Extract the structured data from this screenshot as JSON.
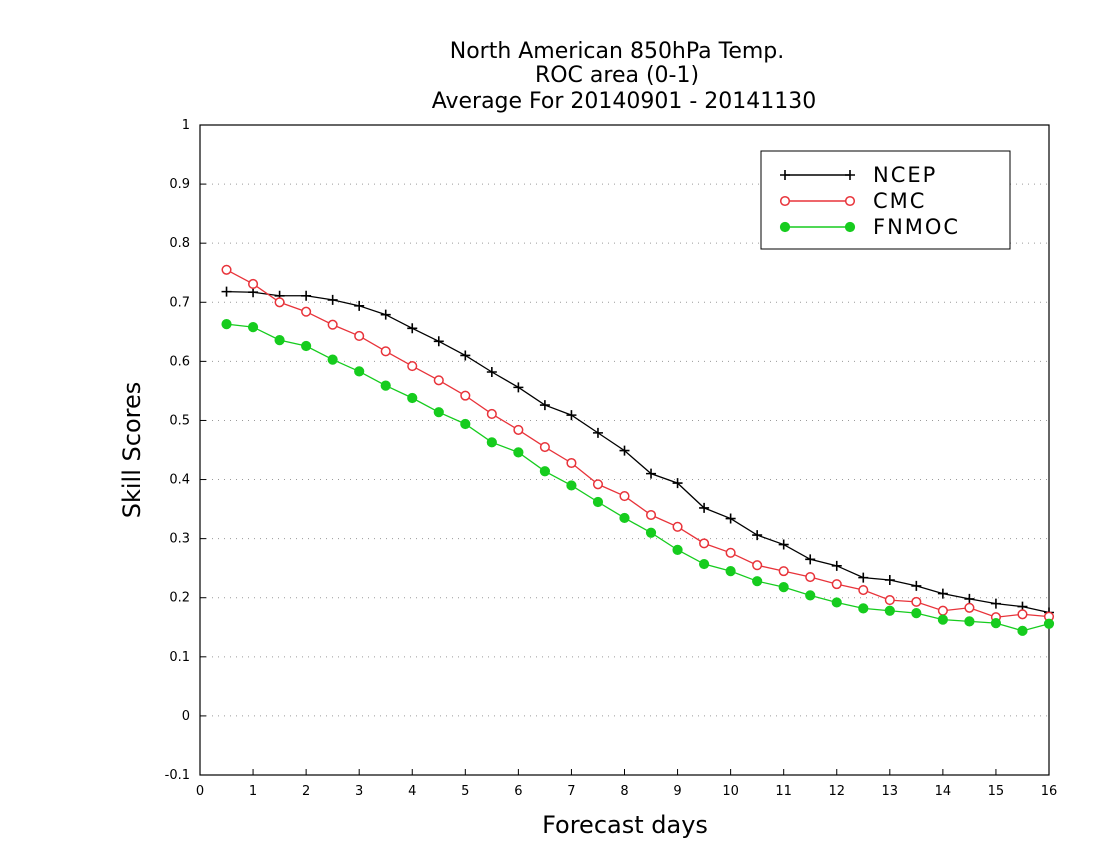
{
  "chart_data": {
    "type": "line",
    "title_lines": [
      "North American 850hPa Temp.",
      "ROC area (0-1)",
      "Average For 20140901 - 20141130"
    ],
    "xlabel": "Forecast days",
    "ylabel": "Skill Scores",
    "xlim": [
      0,
      16
    ],
    "ylim": [
      -0.1,
      1
    ],
    "x_ticks": [
      "0",
      "1",
      "2",
      "3",
      "4",
      "5",
      "6",
      "7",
      "8",
      "9",
      "10",
      "11",
      "12",
      "13",
      "14",
      "15",
      "16"
    ],
    "y_ticks": [
      "-0.1",
      "0",
      "0.1",
      "0.2",
      "0.3",
      "0.4",
      "0.5",
      "0.6",
      "0.7",
      "0.8",
      "0.9",
      "1"
    ],
    "grid": "horizontal-dotted",
    "legend_position": "top-right",
    "x": [
      0.5,
      1,
      1.5,
      2,
      2.5,
      3,
      3.5,
      4,
      4.5,
      5,
      5.5,
      6,
      6.5,
      7,
      7.5,
      8,
      8.5,
      9,
      9.5,
      10,
      10.5,
      11,
      11.5,
      12,
      12.5,
      13,
      13.5,
      14,
      14.5,
      15,
      15.5,
      16
    ],
    "series": [
      {
        "name": "NCEP",
        "color": "#000000",
        "marker": "plus",
        "values": [
          0.718,
          0.717,
          0.711,
          0.711,
          0.704,
          0.694,
          0.679,
          0.656,
          0.634,
          0.61,
          0.582,
          0.556,
          0.526,
          0.509,
          0.479,
          0.449,
          0.41,
          0.394,
          0.352,
          0.334,
          0.306,
          0.29,
          0.265,
          0.254,
          0.234,
          0.23,
          0.22,
          0.207,
          0.198,
          0.19,
          0.185,
          0.175
        ]
      },
      {
        "name": "CMC",
        "color": "#e8333a",
        "marker": "open-circle",
        "values": [
          0.755,
          0.731,
          0.7,
          0.684,
          0.662,
          0.643,
          0.617,
          0.592,
          0.568,
          0.542,
          0.511,
          0.484,
          0.455,
          0.428,
          0.392,
          0.372,
          0.34,
          0.32,
          0.292,
          0.276,
          0.255,
          0.245,
          0.235,
          0.223,
          0.213,
          0.196,
          0.193,
          0.178,
          0.183,
          0.167,
          0.172,
          0.168
        ]
      },
      {
        "name": "FNMOC",
        "color": "#16cc1e",
        "marker": "filled-circle",
        "values": [
          0.663,
          0.658,
          0.636,
          0.626,
          0.603,
          0.583,
          0.559,
          0.538,
          0.514,
          0.494,
          0.463,
          0.446,
          0.414,
          0.39,
          0.362,
          0.335,
          0.31,
          0.281,
          0.257,
          0.245,
          0.228,
          0.218,
          0.204,
          0.192,
          0.182,
          0.178,
          0.174,
          0.163,
          0.16,
          0.157,
          0.144,
          0.156
        ]
      }
    ]
  }
}
